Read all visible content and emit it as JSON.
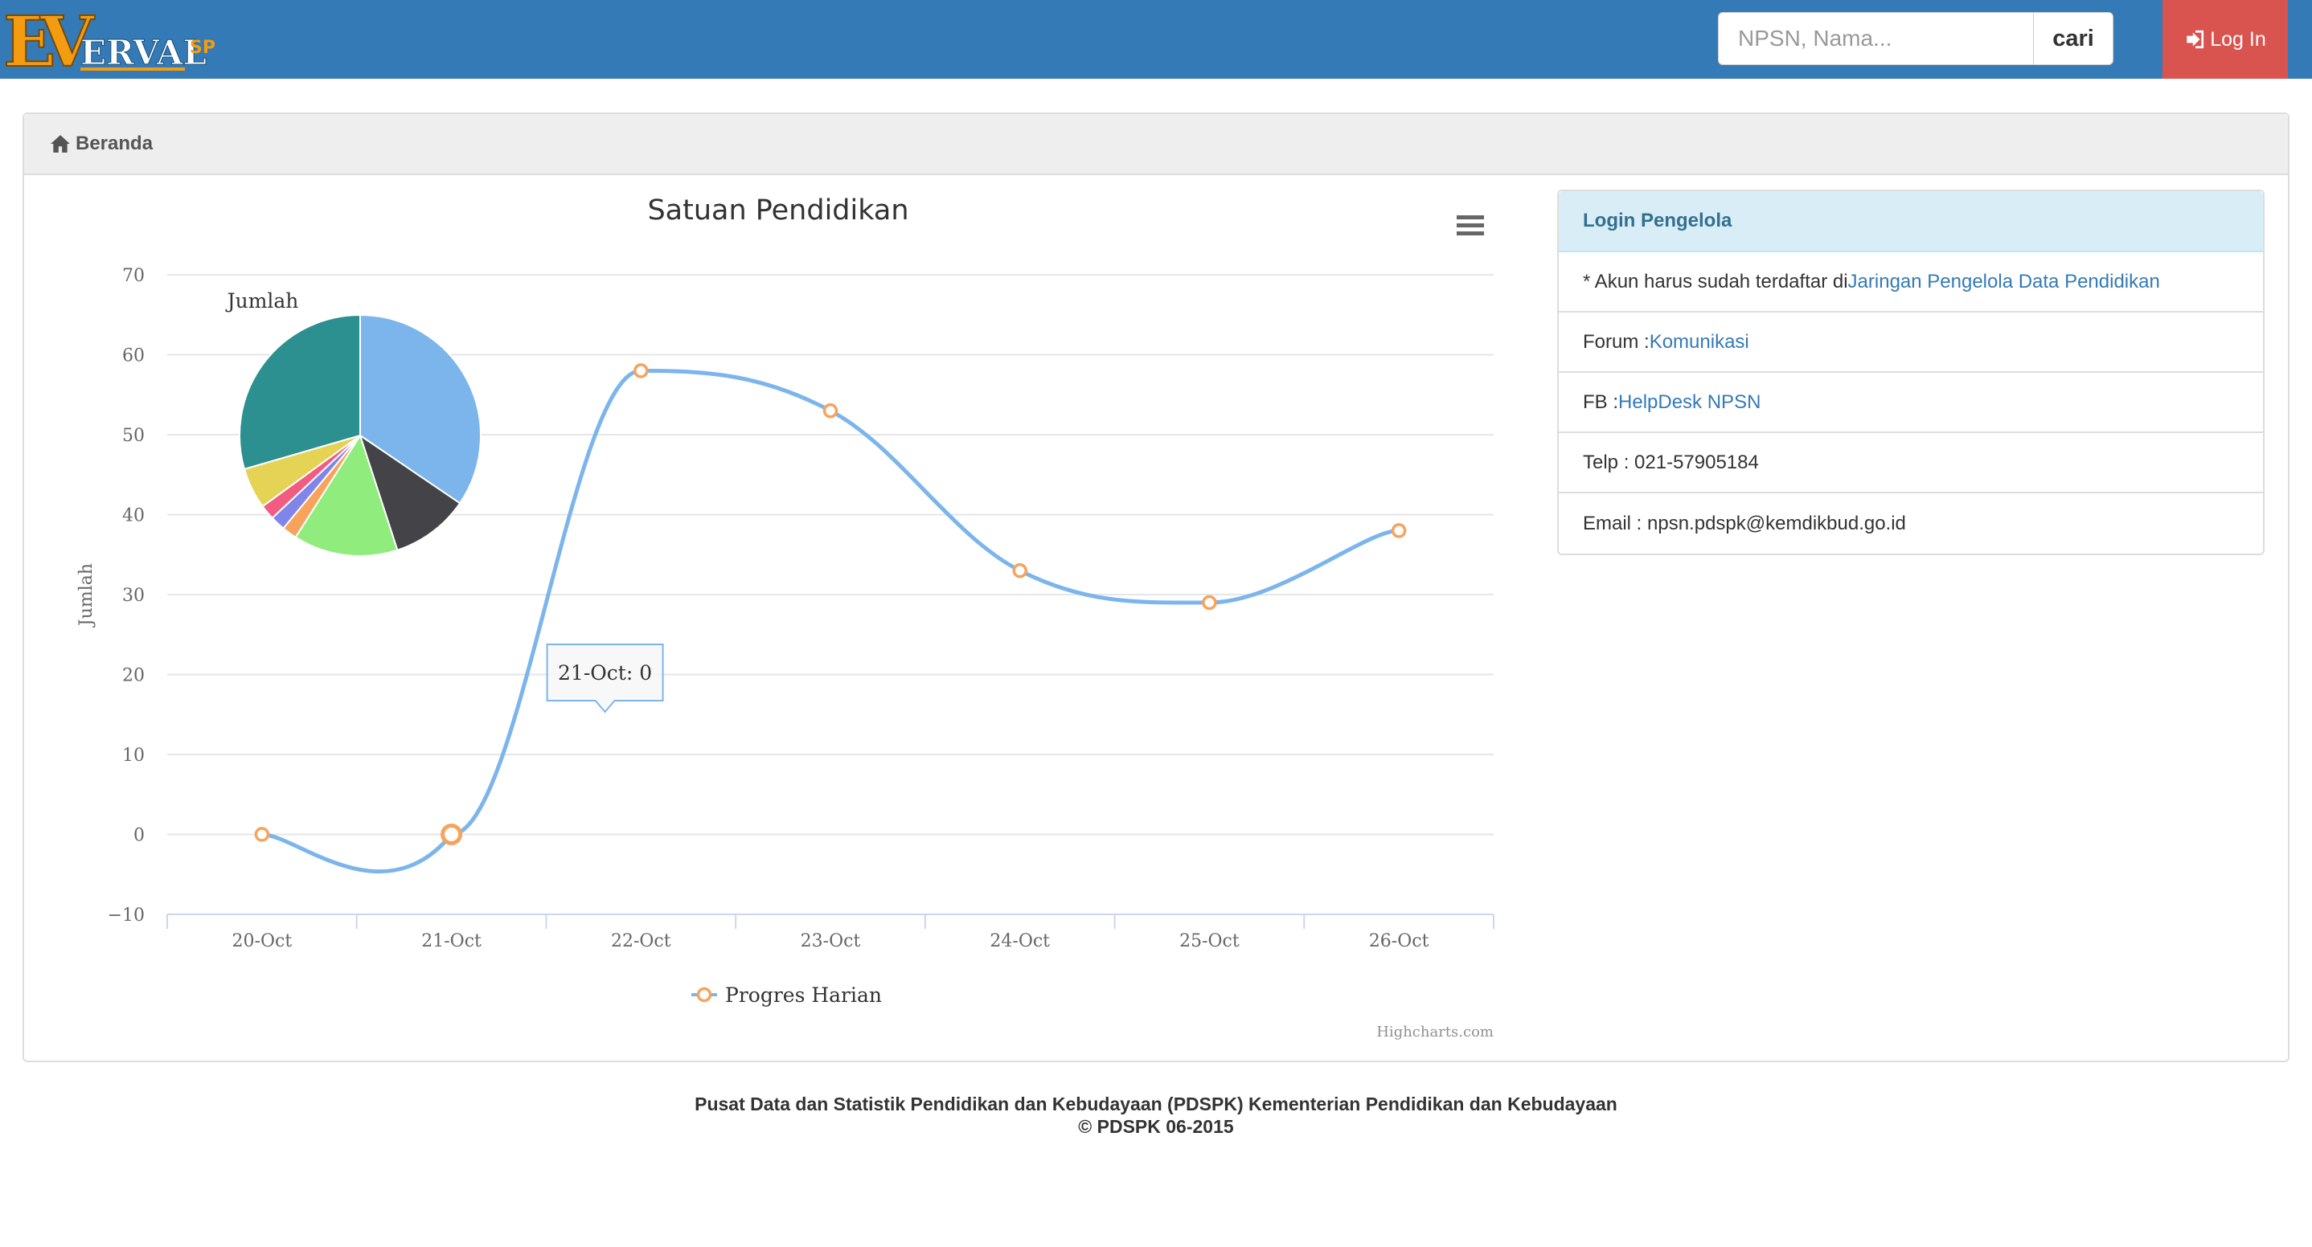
{
  "app": {
    "logo_text": "EVERVALSP",
    "search": {
      "placeholder": "NPSN, Nama...",
      "value": "",
      "button_label": "cari"
    },
    "login_label": "Log In"
  },
  "breadcrumb": {
    "home_label": "Beranda"
  },
  "chart_data": {
    "type": "line",
    "title": "Satuan Pendidikan",
    "xlabel": "",
    "ylabel": "Jumlah",
    "categories": [
      "20-Oct",
      "21-Oct",
      "22-Oct",
      "23-Oct",
      "24-Oct",
      "25-Oct",
      "26-Oct"
    ],
    "series": [
      {
        "name": "Progres Harian",
        "values": [
          0,
          0,
          58,
          53,
          33,
          29,
          38
        ],
        "color": "#7cb5ec",
        "marker_color": "#f7a35c"
      }
    ],
    "ylim": [
      -10,
      70
    ],
    "yticks": [
      -10,
      0,
      10,
      20,
      30,
      40,
      50,
      60,
      70
    ],
    "grid": true,
    "legend": "bottom-center",
    "tooltip": {
      "category": "21-Oct",
      "value": 0,
      "text": "21-Oct: 0"
    },
    "credits": "Highcharts.com",
    "pie": {
      "label": "Jumlah",
      "slices": [
        {
          "value": 34.5,
          "color": "#7cb5ec"
        },
        {
          "value": 10.5,
          "color": "#434348"
        },
        {
          "value": 14.0,
          "color": "#90ed7d"
        },
        {
          "value": 2.0,
          "color": "#f7a35c"
        },
        {
          "value": 2.0,
          "color": "#8085e9"
        },
        {
          "value": 2.0,
          "color": "#f15c80"
        },
        {
          "value": 5.5,
          "color": "#e4d354"
        },
        {
          "value": 29.5,
          "color": "#2b908f"
        }
      ]
    }
  },
  "side_panel": {
    "heading": "Login Pengelola",
    "rows": [
      {
        "text": "* Akun harus sudah terdaftar di ",
        "link": "Jaringan Pengelola Data Pendidikan"
      },
      {
        "text": "Forum : ",
        "link": "Komunikasi"
      },
      {
        "text": "FB : ",
        "link": "HelpDesk NPSN"
      },
      {
        "text": "Telp : 021-57905184",
        "link": ""
      },
      {
        "text": "Email : npsn.pdspk@kemdikbud.go.id",
        "link": ""
      }
    ]
  },
  "footer": {
    "line1": "Pusat Data dan Statistik Pendidikan dan Kebudayaan (PDSPK) Kementerian Pendidikan dan Kebudayaan",
    "line2": "© PDSPK 06-2015"
  },
  "colors": {
    "navbar": "#337ab7",
    "login": "#d9534f",
    "logo_orange": "#f39c12"
  }
}
